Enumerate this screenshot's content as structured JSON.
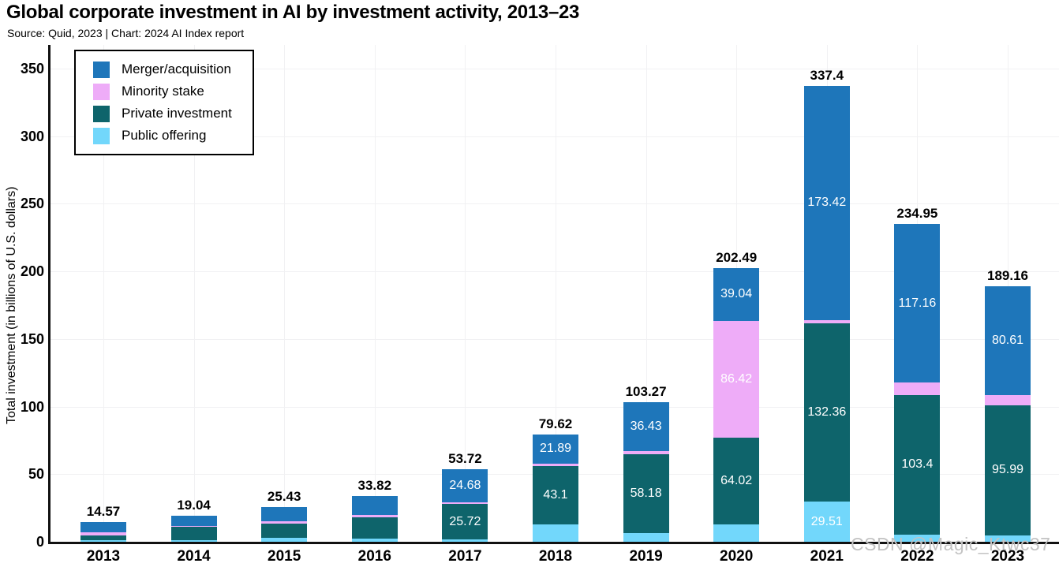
{
  "header": {
    "title": "Global corporate investment in AI by investment activity, 2013–23",
    "source": "Source: Quid, 2023 | Chart: 2024 AI Index report"
  },
  "watermark": "CSDN @Magic_Ktwc37",
  "legend": {
    "items": [
      {
        "label": "Merger/acquisition",
        "color": "#1e76ba"
      },
      {
        "label": "Minority stake",
        "color": "#eeacf8"
      },
      {
        "label": "Private investment",
        "color": "#0e646b"
      },
      {
        "label": "Public offering",
        "color": "#72d7fb"
      }
    ]
  },
  "colors": {
    "grid": "#f1f1f3",
    "axis": "#111111",
    "bar_label": "#ffffff",
    "watermark": "#c3c3c3"
  },
  "chart_data": {
    "type": "bar",
    "stacked": true,
    "title": "Global corporate investment in AI by investment activity, 2013–23",
    "subtitle": "Source: Quid, 2023 | Chart: 2024 AI Index report",
    "xlabel": "",
    "ylabel": "Total investment (in billions of U.S. dollars)",
    "ylim": [
      0,
      350
    ],
    "yticks": [
      0,
      50,
      100,
      150,
      200,
      250,
      300,
      350
    ],
    "grid": true,
    "legend_position": "top-left-inside",
    "categories": [
      "2013",
      "2014",
      "2015",
      "2016",
      "2017",
      "2018",
      "2019",
      "2020",
      "2021",
      "2022",
      "2023"
    ],
    "totals": [
      14.57,
      19.04,
      25.43,
      33.82,
      53.72,
      79.62,
      103.27,
      202.49,
      337.4,
      234.95,
      189.16
    ],
    "total_labels": [
      "14.57",
      "19.04",
      "25.43",
      "33.82",
      "53.72",
      "79.62",
      "103.27",
      "202.49",
      "337.4",
      "234.95",
      "189.16"
    ],
    "stack_order_bottom_to_top": [
      "Public offering",
      "Private investment",
      "Minority stake",
      "Merger/acquisition"
    ],
    "series": [
      {
        "name": "Merger/acquisition",
        "color": "#1e76ba",
        "values": [
          7.74,
          7.6,
          10.1,
          13.8,
          24.68,
          21.89,
          36.43,
          39.04,
          173.42,
          117.16,
          80.61
        ],
        "value_labels": [
          null,
          null,
          null,
          null,
          "24.68",
          "21.89",
          "36.43",
          "39.04",
          "173.42",
          "117.16",
          "80.61"
        ]
      },
      {
        "name": "Minority stake",
        "color": "#eeacf8",
        "values": [
          1.9,
          0.6,
          2.2,
          2.2,
          1.32,
          1.71,
          2.24,
          86.42,
          2.11,
          9.01,
          7.62
        ],
        "value_labels": [
          null,
          null,
          null,
          null,
          null,
          null,
          null,
          "86.42",
          null,
          null,
          null
        ]
      },
      {
        "name": "Private investment",
        "color": "#0e646b",
        "values": [
          3.53,
          9.4,
          10.5,
          15.4,
          25.72,
          43.1,
          58.18,
          64.02,
          132.36,
          103.4,
          95.99
        ],
        "value_labels": [
          null,
          null,
          null,
          null,
          "25.72",
          "43.1",
          "58.18",
          "64.02",
          "132.36",
          "103.4",
          "95.99"
        ]
      },
      {
        "name": "Public offering",
        "color": "#72d7fb",
        "values": [
          1.4,
          1.44,
          2.63,
          2.42,
          2.0,
          12.92,
          6.42,
          13.01,
          29.51,
          5.38,
          4.94
        ],
        "value_labels": [
          null,
          null,
          null,
          null,
          null,
          null,
          null,
          null,
          "29.51",
          null,
          null
        ]
      }
    ]
  }
}
